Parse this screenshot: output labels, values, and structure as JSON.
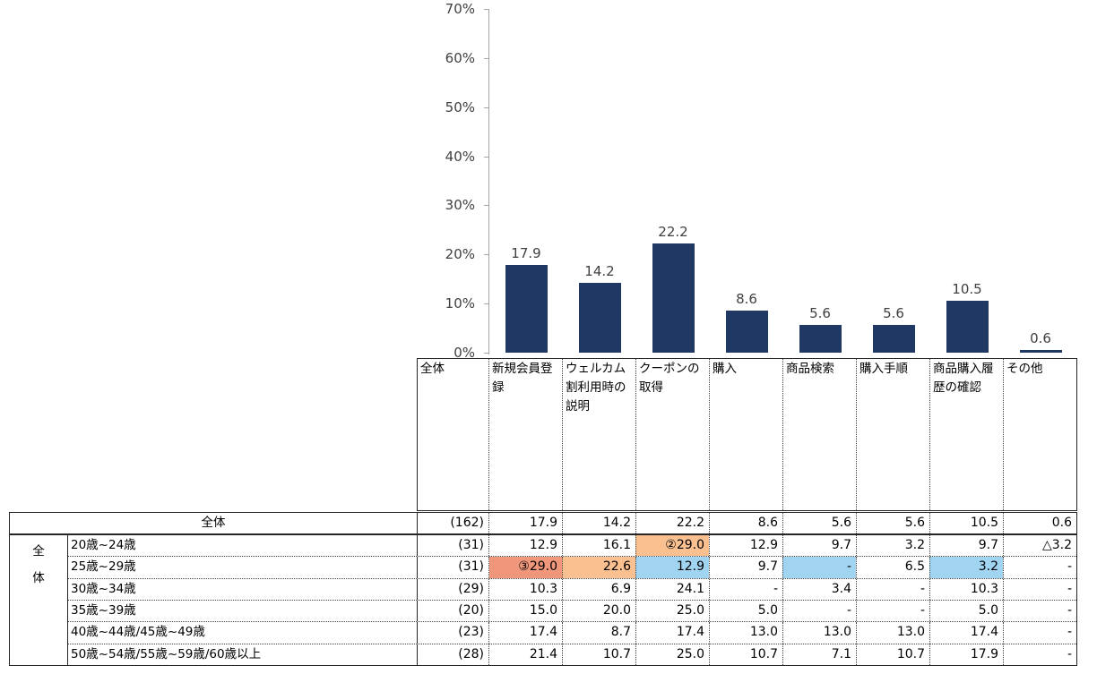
{
  "chart_data": {
    "type": "bar",
    "title": "",
    "categories": [
      "新規会員登録",
      "ウェルカム割利用時の説明",
      "クーポンの取得",
      "購入",
      "商品検索",
      "購入手順",
      "商品購入履歴の確認",
      "その他"
    ],
    "values": [
      17.9,
      14.2,
      22.2,
      8.6,
      5.6,
      5.6,
      10.5,
      0.6
    ],
    "value_labels": [
      "17.9",
      "14.2",
      "22.2",
      "8.6",
      "5.6",
      "5.6",
      "10.5",
      "0.6"
    ],
    "ylim": [
      0,
      70
    ],
    "ytick_labels": [
      "0%",
      "10%",
      "20%",
      "30%",
      "40%",
      "50%",
      "60%",
      "70%"
    ],
    "grid": false,
    "legend_position": "none",
    "bar_color": "#1F3864"
  },
  "table": {
    "corner_label": "全体",
    "columns": [
      "新規会員登録",
      "ウェルカム割利用時の説明",
      "クーポンの取得",
      "購入",
      "商品検索",
      "購入手順",
      "商品購入履歴の確認",
      "その他"
    ],
    "overall": {
      "label": "全体",
      "n": "(162)",
      "values": [
        "17.9",
        "14.2",
        "22.2",
        "8.6",
        "5.6",
        "5.6",
        "10.5",
        "0.6"
      ]
    },
    "group_label": "全\n体",
    "rows": [
      {
        "label": "20歳~24歳",
        "n": "(31)",
        "values": [
          "12.9",
          "16.1",
          "②29.0",
          "12.9",
          "9.7",
          "3.2",
          "9.7",
          "△3.2"
        ],
        "highlights": {
          "2": "orange"
        }
      },
      {
        "label": "25歳~29歳",
        "n": "(31)",
        "values": [
          "③29.0",
          "22.6",
          "12.9",
          "9.7",
          "-",
          "6.5",
          "3.2",
          "-"
        ],
        "highlights": {
          "0": "salmon",
          "1": "orange",
          "2": "blue",
          "4": "blue",
          "6": "blue"
        }
      },
      {
        "label": "30歳~34歳",
        "n": "(29)",
        "values": [
          "10.3",
          "6.9",
          "24.1",
          "-",
          "3.4",
          "-",
          "10.3",
          "-"
        ],
        "highlights": {}
      },
      {
        "label": "35歳~39歳",
        "n": "(20)",
        "values": [
          "15.0",
          "20.0",
          "25.0",
          "5.0",
          "-",
          "-",
          "5.0",
          "-"
        ],
        "highlights": {}
      },
      {
        "label": "40歳~44歳/45歳~49歳",
        "n": "(23)",
        "values": [
          "17.4",
          "8.7",
          "17.4",
          "13.0",
          "13.0",
          "13.0",
          "17.4",
          "-"
        ],
        "highlights": {}
      },
      {
        "label": "50歳~54歳/55歳~59歳/60歳以上",
        "n": "(28)",
        "values": [
          "21.4",
          "10.7",
          "25.0",
          "10.7",
          "7.1",
          "10.7",
          "17.9",
          "-"
        ],
        "highlights": {}
      }
    ],
    "highlight_colors": {
      "orange": "#FAC090",
      "salmon": "#F0977B",
      "blue": "#A0D4F1"
    }
  }
}
